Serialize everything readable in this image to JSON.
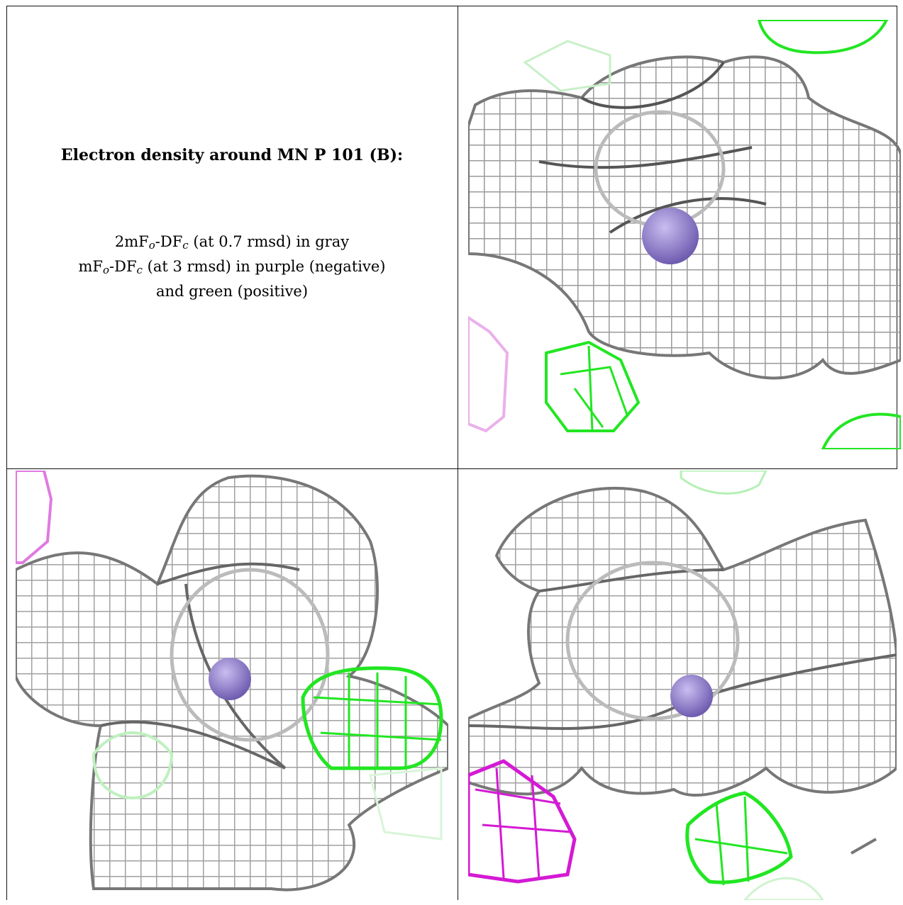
{
  "caption": {
    "title": "Electron density around MN P 101 (B):",
    "line1_a": "2mF",
    "line1_sub1": "o",
    "line1_b": "-DF",
    "line1_sub2": "c",
    "line1_c": " (at 0.7 rmsd) in gray",
    "line2_a": "mF",
    "line2_sub1": "o",
    "line2_b": "-DF",
    "line2_sub2": "c",
    "line2_c": " (at 3 rmsd) in purple (negative)",
    "line3": "and green (positive)"
  },
  "colors": {
    "gray_mesh": "#9a9a9a",
    "dark_mesh": "#555555",
    "positive": "#22e622",
    "positive_faint": "#a9f0a9",
    "negative": "#d41ad4",
    "negative_faint": "#eab0ea",
    "atom": "#8a78c8"
  },
  "views": [
    {
      "label": "view-top-right"
    },
    {
      "label": "view-bottom-left"
    },
    {
      "label": "view-bottom-right"
    }
  ]
}
